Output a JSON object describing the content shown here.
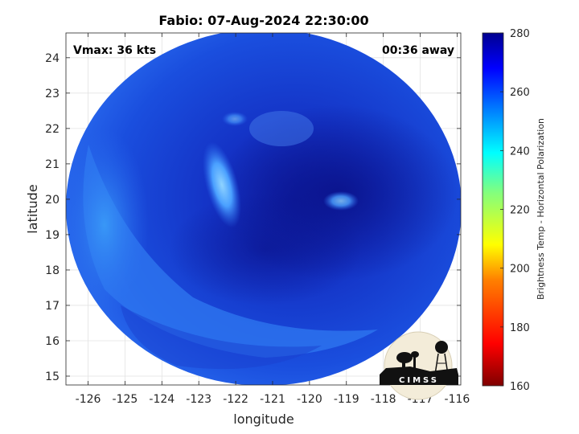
{
  "chart_data": {
    "type": "heatmap",
    "title": "Fabio: 07-Aug-2024 22:30:00",
    "xlabel": "longitude",
    "ylabel": "latitude",
    "x_ticks": [
      -126,
      -125,
      -124,
      -123,
      -122,
      -121,
      -120,
      -119,
      -118,
      -117,
      -116
    ],
    "y_ticks": [
      15,
      16,
      17,
      18,
      19,
      20,
      21,
      22,
      23,
      24
    ],
    "xlim": [
      -126.6,
      -115.9
    ],
    "ylim": [
      14.75,
      24.7
    ],
    "grid": true,
    "annotations": {
      "vmax": "Vmax: 36 kts",
      "time_away": "00:36 away"
    },
    "colorbar": {
      "label": "Brightness Temp - Horizontal Polarization",
      "ticks": [
        160,
        180,
        200,
        220,
        240,
        260,
        280
      ],
      "range": [
        160,
        280
      ],
      "colormap": [
        "#7f0000",
        "#ff0000",
        "#ff8000",
        "#ffff00",
        "#80ff80",
        "#00ffff",
        "#0080ff",
        "#0000ff",
        "#00008f"
      ]
    },
    "swath": {
      "center": [
        -121,
        19.85
      ],
      "background_temp_approx": 262,
      "features": [
        {
          "type": "eye",
          "lon": -119.5,
          "lat": 20.3,
          "temp_approx": 270
        },
        {
          "type": "warm band",
          "lon": -122.5,
          "lat": 20.5,
          "temp_approx": 245
        },
        {
          "type": "outer band",
          "lon": -125,
          "lat": 19,
          "temp_approx": 248
        }
      ]
    },
    "logo": "CIMSS"
  }
}
